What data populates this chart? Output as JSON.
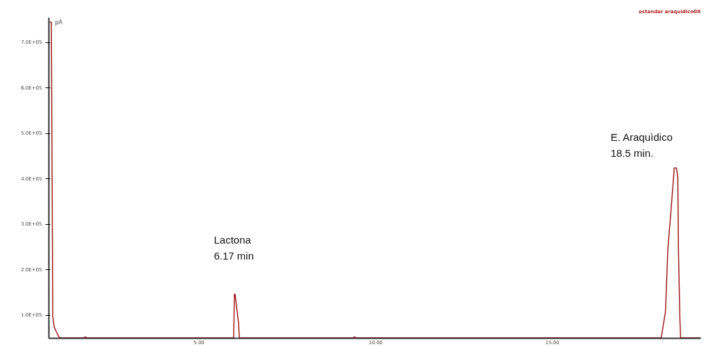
{
  "chart_data": {
    "type": "line",
    "ylabel": "pA",
    "x": [
      0.77,
      0.82,
      0.86,
      0.9,
      0.97,
      1.04,
      1.1,
      1.73,
      1.78,
      1.83,
      3.5,
      5.98,
      6.0,
      6.02,
      6.12,
      6.14,
      6.16,
      9.35,
      9.4,
      9.45,
      18.08,
      18.2,
      18.27,
      18.35,
      18.41,
      18.45,
      18.51,
      18.55,
      18.57,
      18.61,
      18.63,
      19.2
    ],
    "series": [
      {
        "color": "#a01818",
        "values": [
          745000,
          745000,
          97000,
          74000,
          62000,
          51000,
          50000,
          50000,
          52000,
          50000,
          50000,
          50000,
          146000,
          146000,
          81000,
          50000,
          50000,
          50000,
          52000,
          50000,
          50000,
          107000,
          247000,
          323000,
          383000,
          424000,
          424000,
          403000,
          237000,
          89000,
          50000,
          50000
        ]
      }
    ],
    "xlim": [
      0.75,
      19.2
    ],
    "xticks": [
      {
        "value": 5,
        "label": "5.00"
      },
      {
        "value": 10,
        "label": "10.00"
      },
      {
        "value": 15,
        "label": "15.00"
      }
    ],
    "ylim": [
      49000,
      755000
    ],
    "yticks": [
      {
        "value": 100000,
        "label": "1.0E+05"
      },
      {
        "value": 200000,
        "label": "2.0E+05"
      },
      {
        "value": 300000,
        "label": "3.0E+05"
      },
      {
        "value": 400000,
        "label": "4.0E+05"
      },
      {
        "value": 500000,
        "label": "5.0E+05"
      },
      {
        "value": 600000,
        "label": "6.0E+05"
      },
      {
        "value": 700000,
        "label": "7.0E+05"
      }
    ],
    "grid": false,
    "marker": "none",
    "line_style": "solid",
    "annotations": [
      "estandar araquidico0X",
      "Lactona\n6.17 min",
      "E. Araquìdico\n18.5 min."
    ]
  }
}
